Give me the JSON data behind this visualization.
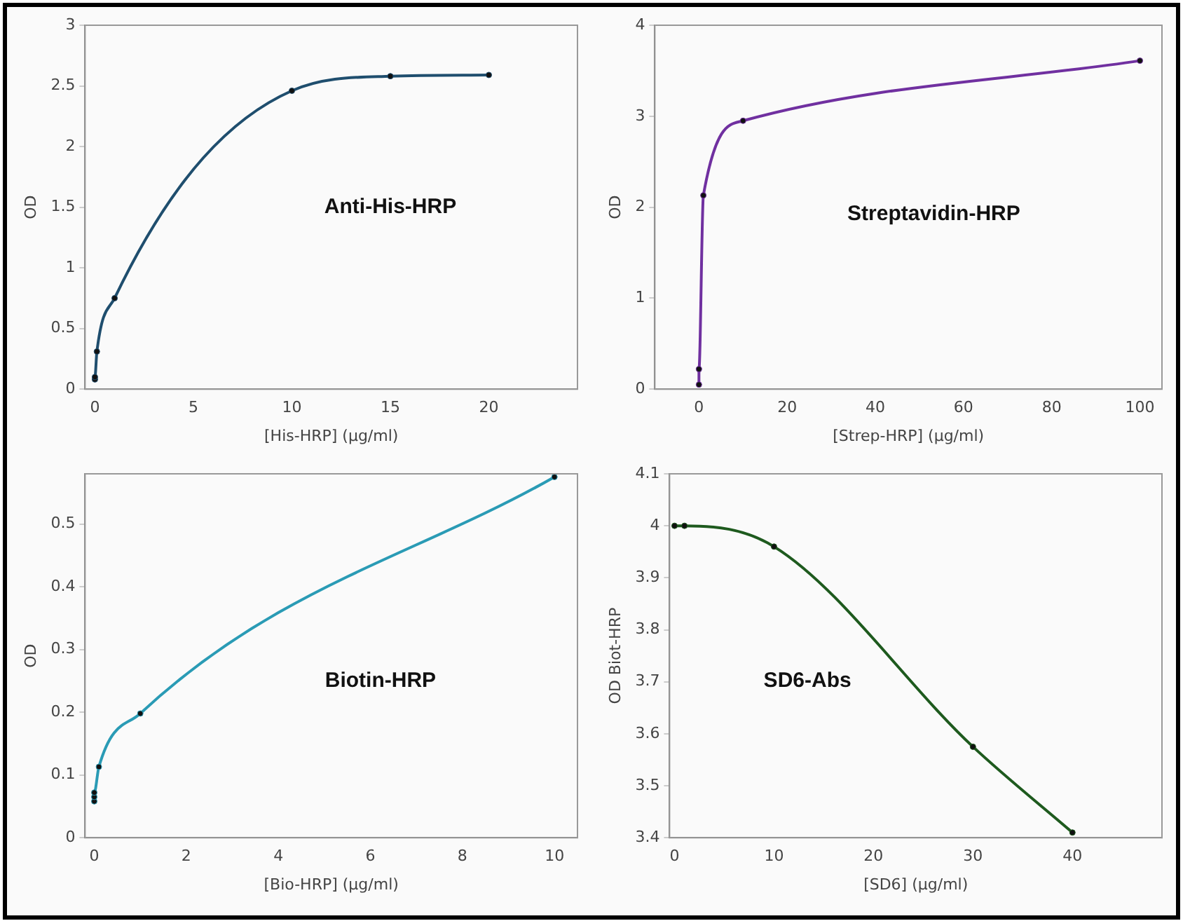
{
  "chart_data": [
    {
      "type": "line",
      "xlabel": "[His-HRP] (µg/ml)",
      "ylabel": "OD",
      "annotations": [
        "Anti-His-HRP"
      ],
      "xlim": [
        -0.5,
        24.5
      ],
      "xticks": [
        0,
        5,
        10,
        15,
        20
      ],
      "ylim": [
        0,
        3
      ],
      "yticks": [
        0,
        0.5,
        1,
        1.5,
        2,
        2.5,
        3
      ],
      "grid": false,
      "legend": false,
      "marker": "circle",
      "line_style": "solid",
      "series": [
        {
          "color": "#1f4e6e",
          "x": [
            0,
            0,
            0.1,
            1,
            10,
            15,
            20
          ],
          "values": [
            0.08,
            0.1,
            0.31,
            0.75,
            2.46,
            2.58,
            2.59
          ]
        }
      ]
    },
    {
      "type": "line",
      "xlabel": "[Strep-HRP] (µg/ml)",
      "ylabel": "OD",
      "annotations": [
        "Streptavidin-HRP"
      ],
      "xlim": [
        -10,
        105
      ],
      "xticks": [
        0,
        20,
        40,
        60,
        80,
        100
      ],
      "ylim": [
        0,
        4
      ],
      "yticks": [
        0,
        1,
        2,
        3,
        4
      ],
      "grid": false,
      "legend": false,
      "marker": "circle",
      "line_style": "solid",
      "series": [
        {
          "color": "#7030a0",
          "x": [
            0,
            0,
            1,
            10,
            100
          ],
          "values": [
            0.05,
            0.22,
            2.13,
            2.95,
            3.61
          ]
        }
      ]
    },
    {
      "type": "line",
      "xlabel": "[Bio-HRP] (µg/ml)",
      "ylabel": "OD",
      "annotations": [
        "Biotin-HRP"
      ],
      "xlim": [
        -0.2,
        10.5
      ],
      "xticks": [
        0,
        2,
        4,
        6,
        8,
        10
      ],
      "ylim": [
        0,
        0.58
      ],
      "yticks": [
        0,
        0.1,
        0.2,
        0.3,
        0.4,
        0.5
      ],
      "grid": false,
      "legend": false,
      "marker": "circle",
      "line_style": "solid",
      "series": [
        {
          "color": "#2a9bb5",
          "x": [
            0,
            0,
            0,
            0.1,
            1,
            10
          ],
          "values": [
            0.058,
            0.065,
            0.072,
            0.113,
            0.198,
            0.575
          ]
        }
      ]
    },
    {
      "type": "line",
      "xlabel": "[SD6] (µg/ml)",
      "ylabel": "OD Biot-HRP",
      "annotations": [
        "SD6-Abs"
      ],
      "xlim": [
        -0.5,
        49
      ],
      "xticks": [
        0,
        10,
        20,
        30,
        40
      ],
      "ylim": [
        3.4,
        4.1
      ],
      "yticks": [
        3.4,
        3.5,
        3.6,
        3.7,
        3.8,
        3.9,
        4,
        4.1
      ],
      "grid": false,
      "legend": false,
      "marker": "circle",
      "line_style": "solid",
      "series": [
        {
          "color": "#1e5a1e",
          "x": [
            0,
            1,
            10,
            30,
            40
          ],
          "values": [
            4.0,
            4.0,
            3.96,
            3.575,
            3.41
          ]
        }
      ]
    }
  ]
}
